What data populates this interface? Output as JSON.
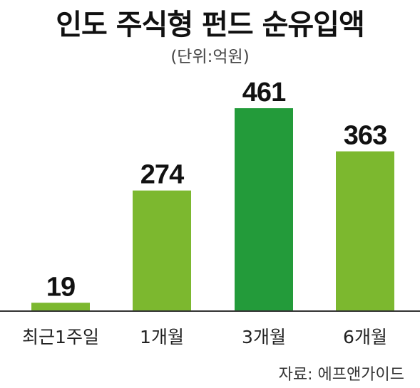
{
  "chart_data": {
    "type": "bar",
    "title": "인도 주식형 펀드 순유입액",
    "unit_note": "(단위:억원)",
    "categories": [
      "최근1주일",
      "1개월",
      "3개월",
      "6개월"
    ],
    "values": [
      19,
      274,
      461,
      363
    ],
    "ylim": [
      0,
      461
    ],
    "grid": false,
    "colors": {
      "default": "#7cb82f",
      "highlight": "#239b3a",
      "axis": "#333333"
    },
    "highlight_index": 2,
    "source": "자료: 에프앤가이드"
  }
}
